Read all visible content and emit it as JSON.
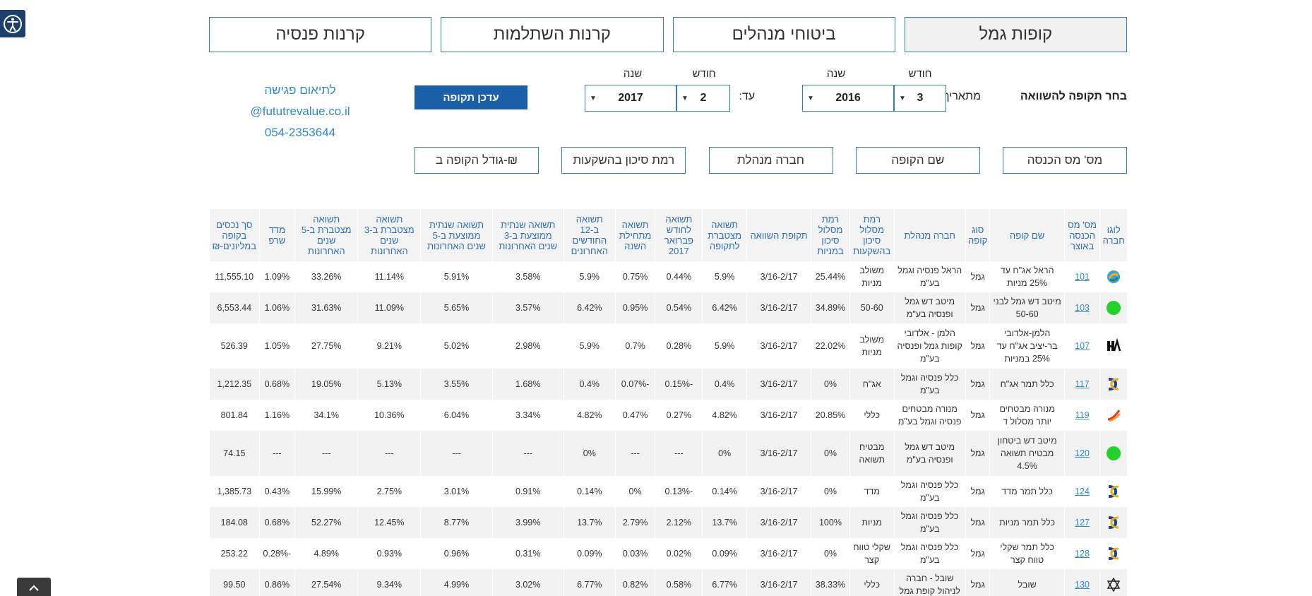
{
  "tabs": [
    {
      "label": "קופות גמל",
      "active": true
    },
    {
      "label": "ביטוחי מנהלים",
      "active": false
    },
    {
      "label": "קרנות השתלמות",
      "active": false
    },
    {
      "label": "קרנות פנסיה",
      "active": false
    }
  ],
  "period": {
    "title": "בחר תקופה להשוואה",
    "from_label": "מתאריך:",
    "to_label": "עד:",
    "month_header": "חודש",
    "year_header": "שנה",
    "from_month": "3",
    "from_year": "2016",
    "to_month": "2",
    "to_year": "2017",
    "update_button": "עדכן תקופה"
  },
  "contact": {
    "line1": "לתיאום פגישה",
    "line2": "@fututrevalue.co.il",
    "line3": "054-2353644"
  },
  "sort_buttons": [
    "מס' מס הכנסה",
    "שם הקופה",
    "חברה מנהלת",
    "רמת סיכון בהשקעות",
    "גודל הקופה ב-₪"
  ],
  "table": {
    "headers": [
      "לוגו חברה",
      "מס' מס הכנסה באוצר",
      "שם קופה",
      "סוג קופה",
      "חברה מנהלת",
      "רמת מסלול סיכון בהשקעות",
      "רמת מסלול סיכון במניות",
      "תקופת השוואה",
      "תשואה מצטברת לתקופה",
      "תשואה לחודש פברואר 2017",
      "תשואה מתחילת השנה",
      "תשואה ב-12 החודשים האחרונים",
      "תשואה שנתית ממוצעת ב-3 שנים האחרונות",
      "תשואה שנתית ממוצעת ב-5 שנים האחרונות",
      "תשואה מצטברת ב-3 שנים האחרונות",
      "תשואה מצטברת ב-5 שנים האחרונות",
      "מדד שרפ",
      "סך נכסים בקופה במליונים-₪"
    ],
    "rows": [
      {
        "logo": "harel-logo",
        "id": "101",
        "name": "הראל אג\"ח עד 25% מניות",
        "type": "גמל",
        "company": "הראל פנסיה וגמל בע\"מ",
        "risk": "משולב מניות",
        "stock": "25.44%",
        "period": "3/16-2/17",
        "cum": "5.9%",
        "month": "0.44%",
        "ytd": "0.75%",
        "m12": "5.9%",
        "avg3": "3.58%",
        "avg5": "5.91%",
        "cum3": "11.14%",
        "cum5": "33.26%",
        "sharpe": "1.09%",
        "assets": "11,555.10"
      },
      {
        "logo": "meitav-logo",
        "id": "103",
        "name": "מיטב דש גמל לבני 50-60",
        "type": "גמל",
        "company": "מיטב דש גמל ופנסיה בע\"מ",
        "risk": "50-60",
        "stock": "34.89%",
        "period": "3/16-2/17",
        "cum": "6.42%",
        "month": "0.54%",
        "ytd": "0.95%",
        "m12": "6.42%",
        "avg3": "3.57%",
        "avg5": "5.65%",
        "cum3": "11.09%",
        "cum5": "31.63%",
        "sharpe": "1.06%",
        "assets": "6,553.44"
      },
      {
        "logo": "halman-logo",
        "id": "107",
        "name": "הלמן-אלדובי בר-יציב אג\"ח עד 25% במניות",
        "type": "גמל",
        "company": "הלמן - אלדובי קופות גמל ופנסיה בע\"מ",
        "risk": "משולב מניות",
        "stock": "22.02%",
        "period": "3/16-2/17",
        "cum": "5.9%",
        "month": "0.28%",
        "ytd": "0.7%",
        "m12": "5.9%",
        "avg3": "2.98%",
        "avg5": "5.02%",
        "cum3": "9.21%",
        "cum5": "27.75%",
        "sharpe": "1.05%",
        "assets": "526.39"
      },
      {
        "logo": "clal-logo",
        "id": "117",
        "name": "כלל תמר אג\"ח",
        "type": "גמל",
        "company": "כלל פנסיה וגמל בע\"מ",
        "risk": "אג\"ח",
        "stock": "0%",
        "period": "3/16-2/17",
        "cum": "0.4%",
        "month": "-0.15%",
        "ytd": "-0.07%",
        "m12": "0.4%",
        "avg3": "1.68%",
        "avg5": "3.55%",
        "cum3": "5.13%",
        "cum5": "19.05%",
        "sharpe": "0.68%",
        "assets": "1,212.35"
      },
      {
        "logo": "menora-logo",
        "id": "119",
        "name": "מנורה מבטחים יותר מסלול ד",
        "type": "גמל",
        "company": "מנורה מבטחים פנסיה וגמל בע\"מ",
        "risk": "כללי",
        "stock": "20.85%",
        "period": "3/16-2/17",
        "cum": "4.82%",
        "month": "0.27%",
        "ytd": "0.47%",
        "m12": "4.82%",
        "avg3": "3.34%",
        "avg5": "6.04%",
        "cum3": "10.36%",
        "cum5": "34.1%",
        "sharpe": "1.16%",
        "assets": "801.84"
      },
      {
        "logo": "meitav-logo",
        "id": "120",
        "name": "מיטב דש ביטחון מבטיח תשואה 4.5%",
        "type": "גמל",
        "company": "מיטב דש גמל ופנסיה בע\"מ",
        "risk": "מבטיח תשואה",
        "stock": "0%",
        "period": "3/16-2/17",
        "cum": "0%",
        "month": "---",
        "ytd": "---",
        "m12": "0%",
        "avg3": "---",
        "avg5": "---",
        "cum3": "---",
        "cum5": "---",
        "sharpe": "---",
        "assets": "74.15"
      },
      {
        "logo": "clal-logo",
        "id": "124",
        "name": "כלל תמר מדד",
        "type": "גמל",
        "company": "כלל פנסיה וגמל בע\"מ",
        "risk": "מדד",
        "stock": "0%",
        "period": "3/16-2/17",
        "cum": "0.14%",
        "month": "-0.13%",
        "ytd": "0%",
        "m12": "0.14%",
        "avg3": "0.91%",
        "avg5": "3.01%",
        "cum3": "2.75%",
        "cum5": "15.99%",
        "sharpe": "0.43%",
        "assets": "1,385.73"
      },
      {
        "logo": "clal-logo",
        "id": "127",
        "name": "כלל תמר מניות",
        "type": "גמל",
        "company": "כלל פנסיה וגמל בע\"מ",
        "risk": "מניות",
        "stock": "100%",
        "period": "3/16-2/17",
        "cum": "13.7%",
        "month": "2.12%",
        "ytd": "2.79%",
        "m12": "13.7%",
        "avg3": "3.99%",
        "avg5": "8.77%",
        "cum3": "12.45%",
        "cum5": "52.27%",
        "sharpe": "0.68%",
        "assets": "184.08"
      },
      {
        "logo": "clal-logo",
        "id": "128",
        "name": "כלל תמר שקלי טווח קצר",
        "type": "גמל",
        "company": "כלל פנסיה וגמל בע\"מ",
        "risk": "שקלי טווח קצר",
        "stock": "0%",
        "period": "3/16-2/17",
        "cum": "0.09%",
        "month": "0.02%",
        "ytd": "0.03%",
        "m12": "0.09%",
        "avg3": "0.31%",
        "avg5": "0.96%",
        "cum3": "0.93%",
        "cum5": "4.89%",
        "sharpe": "-0.28%",
        "assets": "253.22"
      },
      {
        "logo": "shoval-logo",
        "id": "130",
        "name": "שובל",
        "type": "גמל",
        "company": "שובל - חברה לניהול קופת גמל",
        "risk": "כללי",
        "stock": "38.33%",
        "period": "3/16-2/17",
        "cum": "6.77%",
        "month": "0.58%",
        "ytd": "0.82%",
        "m12": "6.77%",
        "avg3": "3.02%",
        "avg5": "4.99%",
        "cum3": "9.34%",
        "cum5": "27.54%",
        "sharpe": "0.86%",
        "assets": "99.50"
      }
    ]
  },
  "icons": {
    "accessibility": "accessibility-icon",
    "scroll_top": "chevron-up-icon"
  },
  "colors": {
    "accent": "#2e7bbf",
    "button": "#1a5fa8",
    "header_text": "#2e6fb5",
    "link": "#2e8bd0"
  }
}
